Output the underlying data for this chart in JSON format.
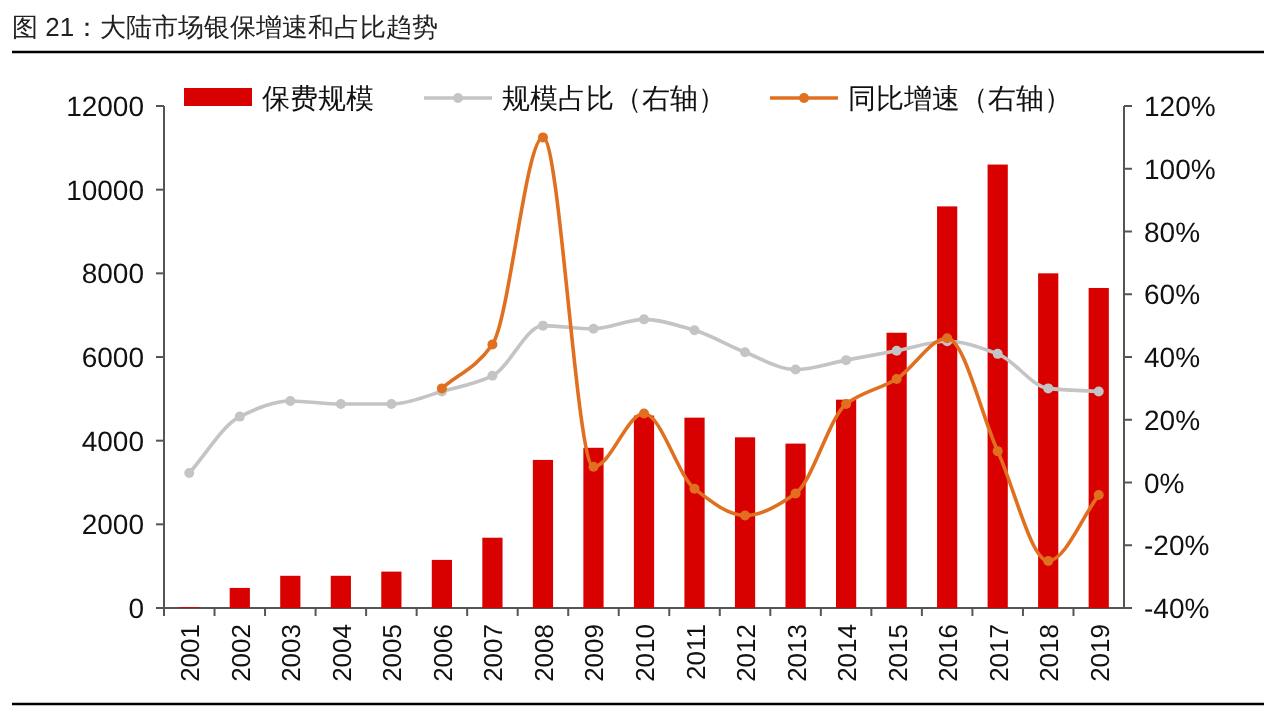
{
  "chart_data": {
    "type": "bar",
    "title": "图 21：大陆市场银保增速和占比趋势",
    "categories": [
      "2001",
      "2002",
      "2003",
      "2004",
      "2005",
      "2006",
      "2007",
      "2008",
      "2009",
      "2010",
      "2011",
      "2012",
      "2013",
      "2014",
      "2015",
      "2016",
      "2017",
      "2018",
      "2019"
    ],
    "series": [
      {
        "name": "保费规模",
        "color": "#d90000",
        "values": [
          20,
          480,
          770,
          770,
          870,
          1150,
          1680,
          3540,
          3830,
          4600,
          4550,
          4080,
          3930,
          4980,
          6580,
          9600,
          10600,
          8000,
          7650
        ]
      },
      {
        "name": "规模占比（右轴）",
        "type": "line",
        "axis": "y2",
        "color": "#c4c4c4",
        "values": [
          3,
          21,
          26,
          25,
          25,
          29,
          34,
          50,
          49,
          52,
          48.5,
          41.5,
          36,
          39,
          42,
          45,
          41,
          30,
          29
        ]
      },
      {
        "name": "同比增速（右轴）",
        "type": "line",
        "axis": "y2",
        "color": "#e07020",
        "values": [
          null,
          null,
          null,
          null,
          null,
          30,
          44,
          110,
          5,
          22,
          -2,
          -10.5,
          -3.5,
          25,
          33,
          46,
          10,
          -25,
          -4
        ]
      }
    ],
    "ylim": [
      0,
      12000
    ],
    "yticks": [
      0,
      2000,
      4000,
      6000,
      8000,
      10000,
      12000
    ],
    "y2lim": [
      -40,
      120
    ],
    "y2ticks": [
      {
        "value": -40,
        "label": "-40%"
      },
      {
        "value": -20,
        "label": "-20%"
      },
      {
        "value": 0,
        "label": "0%"
      },
      {
        "value": 20,
        "label": "20%"
      },
      {
        "value": 40,
        "label": "40%"
      },
      {
        "value": 60,
        "label": "60%"
      },
      {
        "value": 80,
        "label": "80%"
      },
      {
        "value": 100,
        "label": "100%"
      },
      {
        "value": 120,
        "label": "120%"
      }
    ],
    "legend": "top",
    "grid": false,
    "marker": "circle",
    "line_style": "solid"
  }
}
